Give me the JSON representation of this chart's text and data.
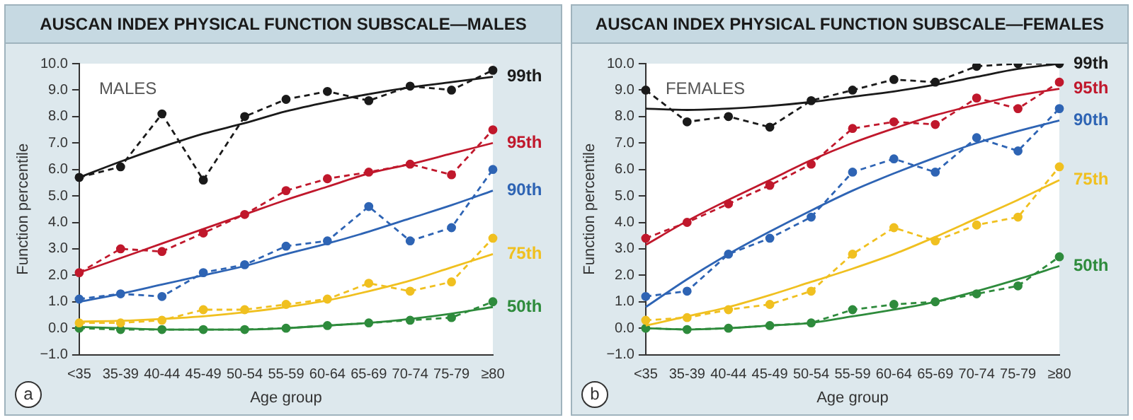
{
  "chart_data": [
    {
      "type": "line",
      "title": "AUSCAN INDEX PHYSICAL FUNCTION SUBSCALE—MALES",
      "xlabel": "Age group",
      "ylabel": "Function percentile",
      "annotations": [
        "MALES",
        "a"
      ],
      "categories": [
        "<35",
        "35-39",
        "40-44",
        "45-49",
        "50-54",
        "55-59",
        "60-64",
        "65-69",
        "70-74",
        "75-79",
        "≥80"
      ],
      "ylim": [
        -1,
        10
      ],
      "yticks": [
        {
          "value": -1,
          "label": "−1.0"
        },
        {
          "value": 0,
          "label": "0.0"
        },
        {
          "value": 1,
          "label": "1.0"
        },
        {
          "value": 2,
          "label": "2.0"
        },
        {
          "value": 3,
          "label": "3.0"
        },
        {
          "value": 4,
          "label": "4.0"
        },
        {
          "value": 5,
          "label": "5.0"
        },
        {
          "value": 6,
          "label": "6.0"
        },
        {
          "value": 7,
          "label": "7.0"
        },
        {
          "value": 8,
          "label": "8.0"
        },
        {
          "value": 9,
          "label": "9.0"
        },
        {
          "value": 10,
          "label": "10.0"
        }
      ],
      "grid": false,
      "legend": false,
      "series": [
        {
          "name": "99th",
          "color": "#1a1a1a",
          "line_style": "dashed",
          "marker": "circle",
          "values": [
            5.7,
            6.1,
            8.1,
            5.6,
            8.0,
            8.65,
            8.95,
            8.6,
            9.15,
            9.0,
            9.75
          ]
        },
        {
          "color": "#1a1a1a",
          "line_style": "solid",
          "marker": "none",
          "values": [
            5.7,
            6.3,
            6.85,
            7.35,
            7.75,
            8.2,
            8.55,
            8.85,
            9.1,
            9.3,
            9.5
          ]
        },
        {
          "name": "95th",
          "color": "#c0182c",
          "line_style": "dashed",
          "marker": "circle",
          "values": [
            2.1,
            3.0,
            2.9,
            3.6,
            4.3,
            5.2,
            5.65,
            5.9,
            6.2,
            5.8,
            7.5
          ]
        },
        {
          "color": "#c0182c",
          "line_style": "solid",
          "marker": "none",
          "values": [
            2.1,
            2.65,
            3.2,
            3.75,
            4.3,
            4.85,
            5.35,
            5.85,
            6.2,
            6.6,
            7.0
          ]
        },
        {
          "name": "90th",
          "color": "#2e64b4",
          "line_style": "dashed",
          "marker": "circle",
          "values": [
            1.1,
            1.3,
            1.2,
            2.1,
            2.4,
            3.1,
            3.3,
            4.6,
            3.3,
            3.8,
            6.0
          ]
        },
        {
          "color": "#2e64b4",
          "line_style": "solid",
          "marker": "none",
          "values": [
            1.0,
            1.3,
            1.65,
            2.0,
            2.35,
            2.8,
            3.2,
            3.65,
            4.15,
            4.65,
            5.2
          ]
        },
        {
          "name": "75th",
          "color": "#f0c020",
          "line_style": "dashed",
          "marker": "circle",
          "values": [
            0.2,
            0.2,
            0.3,
            0.7,
            0.7,
            0.9,
            1.1,
            1.7,
            1.4,
            1.75,
            3.4
          ]
        },
        {
          "color": "#f0c020",
          "line_style": "solid",
          "marker": "none",
          "values": [
            0.25,
            0.28,
            0.35,
            0.45,
            0.6,
            0.8,
            1.05,
            1.4,
            1.8,
            2.3,
            2.8
          ]
        },
        {
          "name": "50th",
          "color": "#2e8b3c",
          "line_style": "dashed",
          "marker": "circle",
          "values": [
            0.0,
            -0.05,
            -0.05,
            -0.05,
            -0.05,
            0.0,
            0.1,
            0.2,
            0.3,
            0.4,
            1.0
          ]
        },
        {
          "color": "#2e8b3c",
          "line_style": "solid",
          "marker": "none",
          "values": [
            0.05,
            0.0,
            -0.05,
            -0.05,
            -0.05,
            0.0,
            0.1,
            0.2,
            0.35,
            0.55,
            0.8
          ]
        }
      ]
    },
    {
      "type": "line",
      "title": "AUSCAN INDEX PHYSICAL FUNCTION SUBSCALE—FEMALES",
      "xlabel": "Age group",
      "ylabel": "Function percentile",
      "annotations": [
        "FEMALES",
        "b"
      ],
      "categories": [
        "<35",
        "35-39",
        "40-44",
        "45-49",
        "50-54",
        "55-59",
        "60-64",
        "65-69",
        "70-74",
        "75-79",
        "≥80"
      ],
      "ylim": [
        -1,
        10
      ],
      "yticks": [
        {
          "value": -1,
          "label": "−1.0"
        },
        {
          "value": 0,
          "label": "0.0"
        },
        {
          "value": 1,
          "label": "1.0"
        },
        {
          "value": 2,
          "label": "2.0"
        },
        {
          "value": 3,
          "label": "3.0"
        },
        {
          "value": 4,
          "label": "4.0"
        },
        {
          "value": 5,
          "label": "5.0"
        },
        {
          "value": 6,
          "label": "6.0"
        },
        {
          "value": 7,
          "label": "7.0"
        },
        {
          "value": 8,
          "label": "8.0"
        },
        {
          "value": 9,
          "label": "9.0"
        },
        {
          "value": 10,
          "label": "10.0"
        }
      ],
      "grid": false,
      "legend": false,
      "series": [
        {
          "name": "99th",
          "color": "#1a1a1a",
          "line_style": "dashed",
          "marker": "circle",
          "values": [
            9.0,
            7.8,
            8.0,
            7.6,
            8.6,
            9.0,
            9.4,
            9.3,
            9.9,
            10.0,
            10.0
          ]
        },
        {
          "color": "#1a1a1a",
          "line_style": "solid",
          "marker": "none",
          "values": [
            8.3,
            8.25,
            8.3,
            8.4,
            8.55,
            8.75,
            8.95,
            9.2,
            9.5,
            9.8,
            10.0
          ]
        },
        {
          "name": "95th",
          "color": "#c0182c",
          "line_style": "dashed",
          "marker": "circle",
          "values": [
            3.4,
            4.0,
            4.7,
            5.4,
            6.2,
            7.55,
            7.8,
            7.7,
            8.7,
            8.3,
            9.3
          ]
        },
        {
          "color": "#c0182c",
          "line_style": "solid",
          "marker": "none",
          "values": [
            3.15,
            4.05,
            4.85,
            5.6,
            6.35,
            7.0,
            7.55,
            8.05,
            8.45,
            8.8,
            9.05
          ]
        },
        {
          "name": "90th",
          "color": "#2e64b4",
          "line_style": "dashed",
          "marker": "circle",
          "values": [
            1.2,
            1.4,
            2.8,
            3.4,
            4.2,
            5.9,
            6.4,
            5.9,
            7.2,
            6.7,
            8.3
          ]
        },
        {
          "color": "#2e64b4",
          "line_style": "solid",
          "marker": "none",
          "values": [
            0.8,
            1.85,
            2.8,
            3.65,
            4.45,
            5.2,
            5.85,
            6.45,
            7.0,
            7.45,
            7.85
          ]
        },
        {
          "name": "75th",
          "color": "#f0c020",
          "line_style": "dashed",
          "marker": "circle",
          "values": [
            0.3,
            0.4,
            0.7,
            0.9,
            1.4,
            2.8,
            3.8,
            3.3,
            3.9,
            4.2,
            6.1
          ]
        },
        {
          "color": "#f0c020",
          "line_style": "solid",
          "marker": "none",
          "values": [
            0.1,
            0.45,
            0.8,
            1.25,
            1.75,
            2.25,
            2.8,
            3.45,
            4.15,
            4.85,
            5.6
          ]
        },
        {
          "name": "50th",
          "color": "#2e8b3c",
          "line_style": "dashed",
          "marker": "circle",
          "values": [
            0.0,
            -0.05,
            0.0,
            0.1,
            0.2,
            0.7,
            0.9,
            1.0,
            1.3,
            1.6,
            2.7
          ]
        },
        {
          "color": "#2e8b3c",
          "line_style": "solid",
          "marker": "none",
          "values": [
            0.0,
            -0.05,
            0.0,
            0.1,
            0.2,
            0.45,
            0.7,
            1.0,
            1.4,
            1.85,
            2.35
          ]
        }
      ]
    }
  ]
}
